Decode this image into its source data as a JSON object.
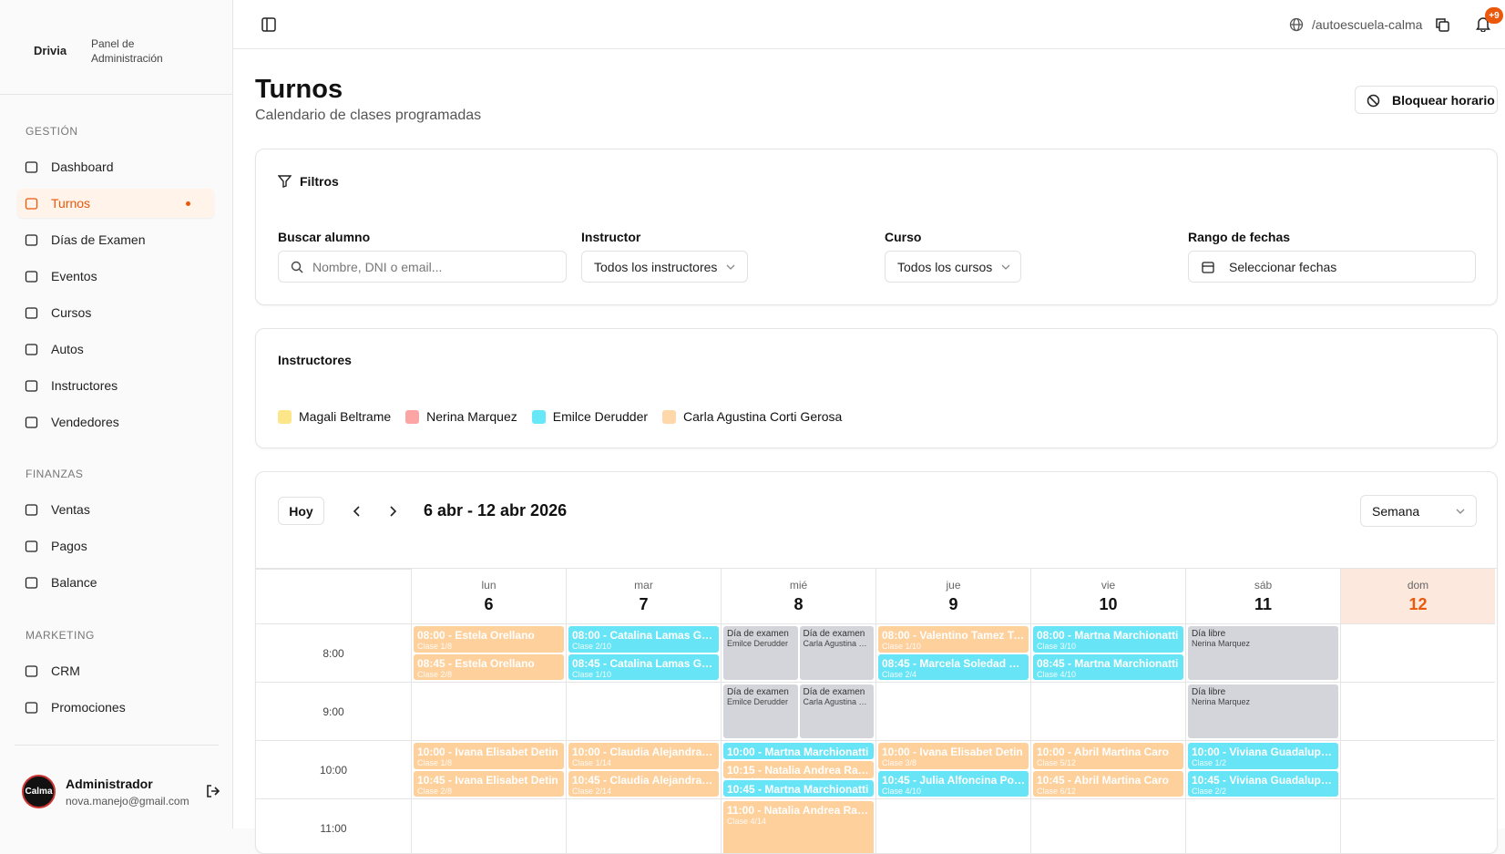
{
  "sidebar": {
    "brand": "Drivia",
    "panel": "Panel de Administración",
    "sections": [
      {
        "title": "GESTIÓN",
        "items": [
          {
            "label": "Dashboard"
          },
          {
            "label": "Turnos",
            "active": true
          },
          {
            "label": "Días de Examen"
          },
          {
            "label": "Eventos"
          },
          {
            "label": "Cursos"
          },
          {
            "label": "Autos"
          },
          {
            "label": "Instructores"
          },
          {
            "label": "Vendedores"
          }
        ]
      },
      {
        "title": "FINANZAS",
        "items": [
          {
            "label": "Ventas"
          },
          {
            "label": "Pagos"
          },
          {
            "label": "Balance"
          }
        ]
      },
      {
        "title": "MARKETING",
        "items": [
          {
            "label": "CRM"
          },
          {
            "label": "Promociones"
          }
        ]
      }
    ],
    "user": {
      "avatar": "Calma",
      "name": "Administrador",
      "email": "nova.manejo@gmail.com"
    }
  },
  "topbar": {
    "path": "/autoescuela-calma",
    "badge": "+9"
  },
  "header": {
    "title": "Turnos",
    "subtitle": "Calendario de clases programadas",
    "action": "Bloquear horario"
  },
  "filters": {
    "title": "Filtros",
    "fields": [
      {
        "label": "Buscar alumno",
        "placeholder": "Nombre, DNI o email..."
      },
      {
        "label": "Instructor",
        "value": "Todos los instructores"
      },
      {
        "label": "Curso",
        "value": "Todos los cursos"
      },
      {
        "label": "Rango de fechas",
        "value": "Seleccionar fechas"
      }
    ]
  },
  "instructors": {
    "title": "Instructores",
    "items": [
      {
        "name": "Magali Beltrame",
        "color": "#fde68a"
      },
      {
        "name": "Nerina Marquez",
        "color": "#fca5a5"
      },
      {
        "name": "Emilce Derudder",
        "color": "#67e8f9"
      },
      {
        "name": "Carla Agustina Corti Gerosa",
        "color": "#fed7aa"
      }
    ]
  },
  "calendar": {
    "today_button": "Hoy",
    "range": "6 abr - 12 abr 2026",
    "view": "Semana",
    "days": [
      {
        "weekday": "lun",
        "day": 6
      },
      {
        "weekday": "mar",
        "day": 7
      },
      {
        "weekday": "mié",
        "day": 8
      },
      {
        "weekday": "jue",
        "day": 9
      },
      {
        "weekday": "vie",
        "day": 10
      },
      {
        "weekday": "sáb",
        "day": 11
      },
      {
        "weekday": "dom",
        "day": 12,
        "current": true
      }
    ],
    "rows": [
      {
        "time": "8:00",
        "cells": [
          [
            [
              {
                "title": "08:00 - Estela Orellano",
                "sub": "Clase 1/8",
                "color": "#fdd09c"
              }
            ],
            [
              {
                "title": "08:45 - Estela Orellano",
                "sub": "Clase 2/8",
                "color": "#fdd09c"
              }
            ]
          ],
          [
            [
              {
                "title": "08:00 - Catalina Lamas Gue...",
                "sub": "Clase 2/10",
                "color": "#67e4f6"
              }
            ],
            [
              {
                "title": "08:45 - Catalina Lamas Gu...",
                "sub": "Clase 1/10",
                "color": "#67e4f6"
              }
            ]
          ],
          [
            [
              {
                "title": "Día de examen",
                "sub": "Emilce Derudder",
                "color": "#d3d5db"
              },
              {
                "title": "Día de examen",
                "sub": "Carla Agustina C...",
                "color": "#d3d5db"
              }
            ]
          ],
          [
            [
              {
                "title": "08:00 - Valentino Tamez To...",
                "sub": "Clase 1/10",
                "color": "#fdd09c"
              }
            ],
            [
              {
                "title": "08:45 - Marcela Soledad M...",
                "sub": "Clase 2/4",
                "color": "#67e4f6"
              }
            ]
          ],
          [
            [
              {
                "title": "08:00 - Martna Marchionatti",
                "sub": "Clase 3/10",
                "color": "#67e4f6"
              }
            ],
            [
              {
                "title": "08:45 - Martna Marchionatti",
                "sub": "Clase 4/10",
                "color": "#67e4f6"
              }
            ]
          ],
          [
            [
              {
                "title": "Día libre",
                "sub": "Nerina Marquez",
                "color": "#d3d5db"
              }
            ]
          ],
          []
        ]
      },
      {
        "time": "9:00",
        "cells": [
          [],
          [],
          [
            [
              {
                "title": "Día de examen",
                "sub": "Emilce Derudder",
                "color": "#d3d5db"
              },
              {
                "title": "Día de examen",
                "sub": "Carla Agustina C...",
                "color": "#d3d5db"
              }
            ]
          ],
          [],
          [],
          [
            [
              {
                "title": "Día libre",
                "sub": "Nerina Marquez",
                "color": "#d3d5db"
              }
            ]
          ],
          []
        ]
      },
      {
        "time": "10:00",
        "cells": [
          [
            [
              {
                "title": "10:00 - Ivana Elisabet Detin",
                "sub": "Clase 1/8",
                "color": "#fdd09c"
              }
            ],
            [
              {
                "title": "10:45 - Ivana Elisabet Detin",
                "sub": "Clase 2/8",
                "color": "#fdd09c"
              }
            ]
          ],
          [
            [
              {
                "title": "10:00 - Claudia Alejandra C...",
                "sub": "Clase 1/14",
                "color": "#fdd09c"
              }
            ],
            [
              {
                "title": "10:45 - Claudia Alejandra C...",
                "sub": "Clase 2/14",
                "color": "#fdd09c"
              }
            ]
          ],
          [
            [
              {
                "title": "10:00 - Martna Marchionatti",
                "sub": "Clase 3/14",
                "color": "#67e4f6"
              }
            ],
            [
              {
                "title": "10:15 - Natalia Andrea Rait...",
                "sub": "Clase 3/14",
                "color": "#fdd09c"
              }
            ],
            [
              {
                "title": "10:45 - Martna Marchionatti",
                "sub": "Clase 4/14",
                "color": "#67e4f6"
              }
            ]
          ],
          [
            [
              {
                "title": "10:00 - Ivana Elisabet Detin",
                "sub": "Clase 3/8",
                "color": "#fdd09c"
              }
            ],
            [
              {
                "title": "10:45 - Julia Alfoncina Pozza",
                "sub": "Clase 4/10",
                "color": "#67e4f6"
              }
            ]
          ],
          [
            [
              {
                "title": "10:00 - Abril Martina Caro",
                "sub": "Clase 5/12",
                "color": "#fdd09c"
              }
            ],
            [
              {
                "title": "10:45 - Abril Martina Caro",
                "sub": "Clase 6/12",
                "color": "#fdd09c"
              }
            ]
          ],
          [
            [
              {
                "title": "10:00 - Viviana Guadalupe ...",
                "sub": "Clase 1/2",
                "color": "#67e4f6"
              }
            ],
            [
              {
                "title": "10:45 - Viviana Guadalupe ...",
                "sub": "Clase 2/2",
                "color": "#67e4f6"
              }
            ]
          ],
          []
        ]
      },
      {
        "time": "11:00",
        "cells": [
          [],
          [],
          [
            [
              {
                "title": "11:00 - Natalia Andrea Rait...",
                "sub": "Clase 4/14",
                "color": "#fdd09c"
              }
            ]
          ],
          [],
          [],
          [],
          []
        ]
      }
    ]
  }
}
